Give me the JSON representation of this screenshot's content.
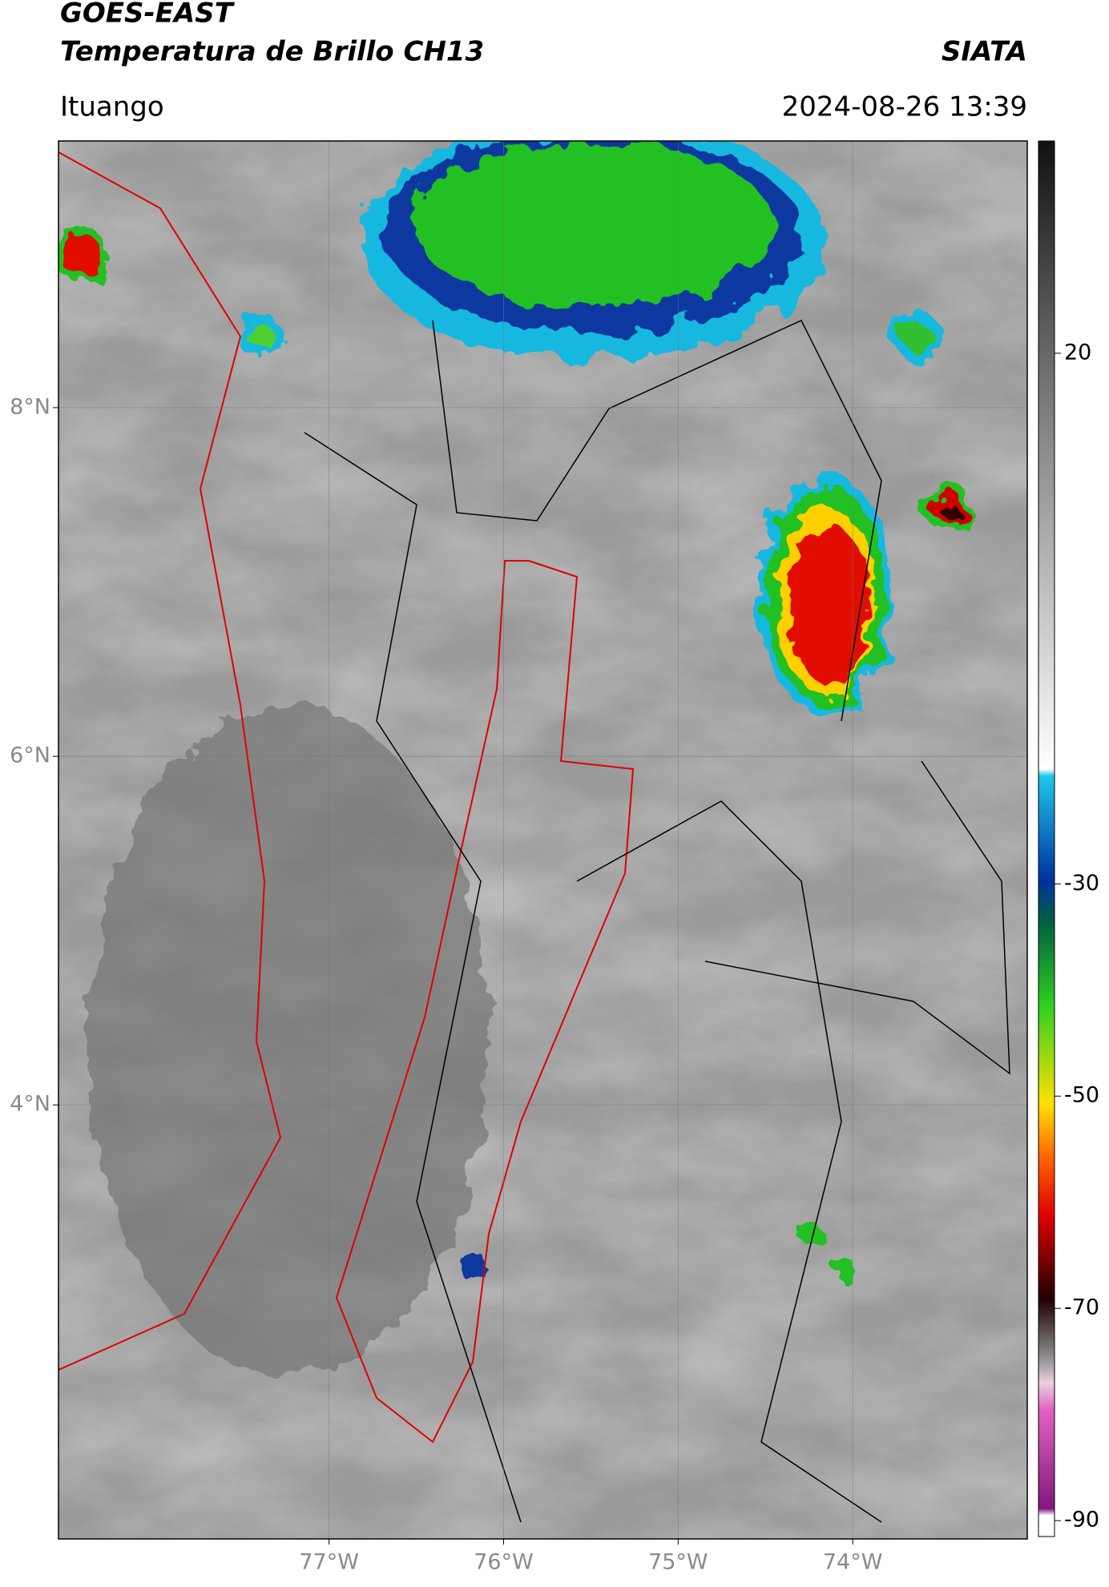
{
  "header": {
    "satellite": "GOES-EAST",
    "product": "Temperatura de Brillo CH13",
    "agency": "SIATA",
    "location": "Ituango",
    "datetime": "2024-08-26 13:39"
  },
  "map": {
    "ylim": [
      1.51,
      9.53
    ],
    "xlim": [
      -78.55,
      -73.0
    ],
    "yticks": [
      {
        "value": 8,
        "label": "8°N"
      },
      {
        "value": 6,
        "label": "6°N"
      },
      {
        "value": 4,
        "label": "4°N"
      }
    ],
    "xticks": [
      {
        "value": -77,
        "label": "77°W"
      },
      {
        "value": -76,
        "label": "76°W"
      },
      {
        "value": -75,
        "label": "75°W"
      },
      {
        "value": -74,
        "label": "74°W"
      }
    ]
  },
  "colorbar": {
    "lim": [
      -91.5,
      40
    ],
    "ticks": [
      20,
      -30,
      -50,
      -70,
      -90
    ]
  }
}
